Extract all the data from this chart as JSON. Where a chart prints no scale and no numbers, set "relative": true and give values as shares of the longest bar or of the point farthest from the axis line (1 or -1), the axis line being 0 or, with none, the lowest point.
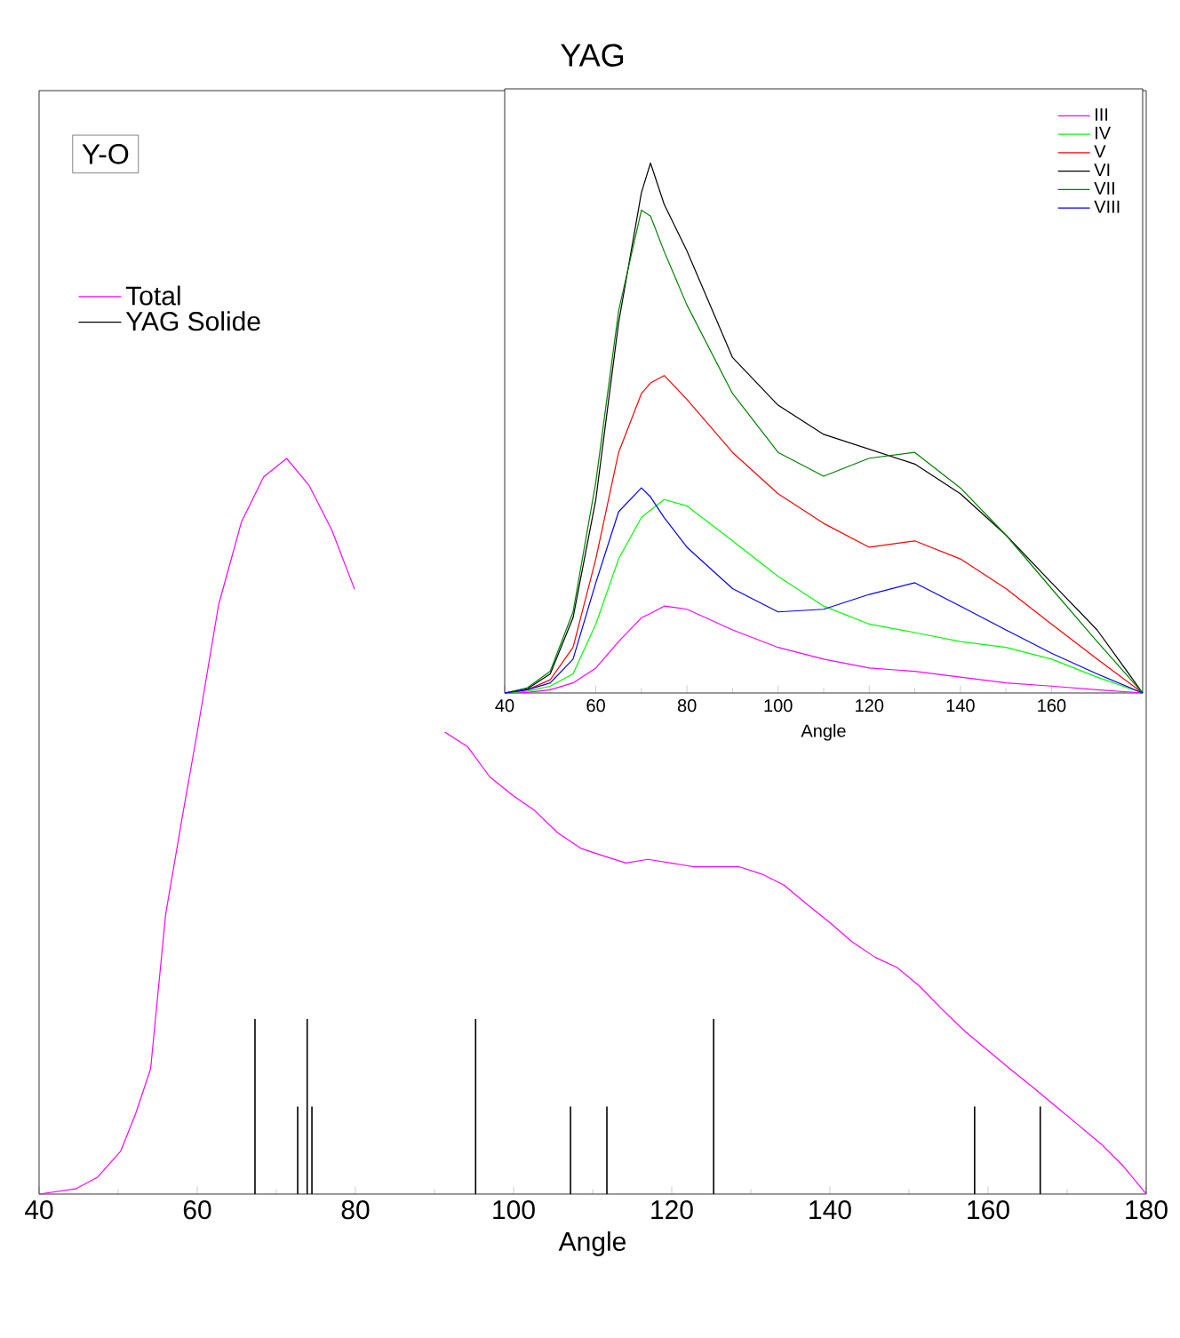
{
  "chart_data": [
    {
      "type": "line",
      "title": "YAG",
      "xlabel": "Angle",
      "relative": true,
      "xlim": [
        40,
        180
      ],
      "xticks": [
        40,
        60,
        80,
        100,
        120,
        140,
        160,
        180
      ],
      "legend": "top left",
      "tick_labels": "x",
      "annotations": [
        "Y-O"
      ],
      "series": [
        {
          "name": "Total",
          "type": "line",
          "color": "#ff00ff",
          "x": [
            40,
            44.6,
            47.4,
            50.3,
            52.2,
            54.1,
            56,
            58,
            60,
            62.7,
            65.6,
            68.4,
            71.3,
            74.1,
            77,
            79.9,
            82.7,
            85.6,
            88.4,
            91.3,
            94.2,
            97,
            99.9,
            102.7,
            105.6,
            108.5,
            111.3,
            114.2,
            117,
            119.9,
            122.8,
            125.6,
            128.5,
            131.4,
            134.2,
            137.1,
            140,
            142.8,
            145.7,
            148.5,
            151.4,
            154.2,
            157.1,
            160,
            162.8,
            165.7,
            168.6,
            171.4,
            174.3,
            177.1,
            180
          ],
          "values": [
            0,
            0.007,
            0.023,
            0.058,
            0.109,
            0.17,
            0.38,
            0.506,
            0.628,
            0.801,
            0.914,
            0.975,
            1.0,
            0.964,
            0.903,
            0.822,
            null,
            null,
            null,
            0.628,
            0.608,
            0.567,
            0.542,
            0.521,
            0.491,
            0.47,
            0.46,
            0.45,
            0.455,
            0.45,
            0.445,
            0.445,
            0.445,
            0.435,
            0.42,
            0.394,
            0.369,
            0.343,
            0.322,
            0.308,
            0.282,
            0.251,
            0.221,
            0.195,
            0.17,
            0.145,
            0.119,
            0.094,
            0.068,
            0.038,
            0
          ]
        },
        {
          "name": "YAG Solide",
          "type": "bar",
          "color": "#000000",
          "x": [
            67.3,
            72.7,
            73.9,
            74.5,
            95.2,
            107.2,
            111.8,
            125.3,
            158.3,
            166.6
          ],
          "values": [
            0.238,
            0.119,
            0.238,
            0.119,
            0.238,
            0.119,
            0.119,
            0.238,
            0.119,
            0.119
          ]
        }
      ]
    },
    {
      "type": "line",
      "xlabel": "Angle",
      "relative": true,
      "xlim": [
        40,
        180
      ],
      "xticks": [
        40,
        60,
        80,
        100,
        120,
        140,
        160
      ],
      "legend": "top right",
      "tick_labels": "x",
      "x": [
        40,
        45,
        50,
        55,
        60,
        65,
        70,
        72,
        75,
        80,
        90,
        100,
        110,
        120,
        130,
        140,
        150,
        160,
        170,
        180
      ],
      "series": [
        {
          "name": "III",
          "color": "#ff00ff",
          "values": [
            0,
            0.001,
            0.006,
            0.019,
            0.047,
            0.097,
            0.142,
            0.15,
            0.164,
            0.158,
            0.119,
            0.086,
            0.064,
            0.047,
            0.041,
            0.03,
            0.019,
            0.013,
            0.006,
            0
          ]
        },
        {
          "name": "IV",
          "color": "#00ff00",
          "values": [
            0,
            0.003,
            0.013,
            0.036,
            0.13,
            0.253,
            0.331,
            0.345,
            0.365,
            0.353,
            0.287,
            0.22,
            0.164,
            0.13,
            0.114,
            0.097,
            0.086,
            0.064,
            0.03,
            0
          ]
        },
        {
          "name": "V",
          "color": "#ff0000",
          "values": [
            0,
            0.006,
            0.025,
            0.086,
            0.253,
            0.454,
            0.565,
            0.585,
            0.599,
            0.554,
            0.454,
            0.376,
            0.32,
            0.275,
            0.287,
            0.253,
            0.197,
            0.13,
            0.064,
            0
          ]
        },
        {
          "name": "VI",
          "color": "#000000",
          "values": [
            0,
            0.008,
            0.036,
            0.142,
            0.365,
            0.699,
            0.944,
            1.0,
            0.922,
            0.834,
            0.633,
            0.543,
            0.488,
            0.46,
            0.432,
            0.376,
            0.298,
            0.208,
            0.119,
            0
          ]
        },
        {
          "name": "VII",
          "color": "#008000",
          "values": [
            0,
            0.01,
            0.041,
            0.153,
            0.398,
            0.721,
            0.911,
            0.9,
            0.833,
            0.732,
            0.565,
            0.454,
            0.409,
            0.443,
            0.454,
            0.387,
            0.298,
            0.197,
            0.097,
            0
          ]
        },
        {
          "name": "VIII",
          "color": "#0000ff",
          "values": [
            0,
            0.006,
            0.019,
            0.064,
            0.208,
            0.342,
            0.387,
            0.37,
            0.331,
            0.275,
            0.197,
            0.153,
            0.158,
            0.186,
            0.208,
            0.164,
            0.119,
            0.075,
            0.036,
            0
          ]
        }
      ]
    }
  ]
}
